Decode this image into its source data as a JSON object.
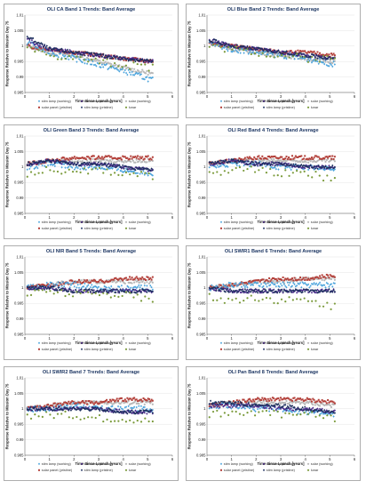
{
  "figure": {
    "x_axis_label": "Time Since Launch [years]",
    "y_axis_label": "Response Relative to Mission Day 75",
    "x_ticks": [
      "0",
      "1",
      "2",
      "3",
      "4",
      "5",
      "6"
    ],
    "y_ticks": [
      "0.985",
      "0.99",
      "0.995",
      "1",
      "1.005",
      "1.01"
    ],
    "legend": [
      {
        "name": "stim lamp (working)",
        "color": "#4aa3dc",
        "marker": "diamond"
      },
      {
        "name": "stim lamp (backup)",
        "color": "#4b2a8c",
        "marker": "diamond"
      },
      {
        "name": "solar (working)",
        "color": "#b8b8b8",
        "marker": "circle"
      },
      {
        "name": "solar panel (pristine)",
        "color": "#b3403a",
        "marker": "square"
      },
      {
        "name": "stim lamp (pristine)",
        "color": "#1d2f5e",
        "marker": "diamond"
      },
      {
        "name": "lunar",
        "color": "#7a9a3a",
        "marker": "circle"
      }
    ]
  },
  "chart_data": [
    {
      "type": "scatter",
      "title": "OLI CA Band 1 Trends: Band Average",
      "xlabel": "Time Since Launch [years]",
      "ylabel": "Response Relative to Mission Day 75",
      "xlim": [
        0,
        6
      ],
      "ylim": [
        0.985,
        1.01
      ],
      "series": [
        {
          "name": "stim lamp (working)",
          "x": [
            0.1,
            1,
            2,
            3,
            4,
            5.2
          ],
          "y": [
            1.001,
            0.998,
            0.996,
            0.994,
            0.992,
            0.989
          ]
        },
        {
          "name": "stim lamp (backup)",
          "x": [
            0.1,
            1,
            2,
            3,
            4,
            5.2
          ],
          "y": [
            1.002,
            0.999,
            0.998,
            0.997,
            0.996,
            0.995
          ]
        },
        {
          "name": "solar (working)",
          "x": [
            0.1,
            1,
            2,
            3,
            4,
            5.2
          ],
          "y": [
            1.0,
            0.998,
            0.997,
            0.995,
            0.993,
            0.991
          ]
        },
        {
          "name": "solar panel (pristine)",
          "x": [
            0.1,
            1,
            2,
            3,
            4,
            5.2
          ],
          "y": [
            1.0,
            0.999,
            0.998,
            0.997,
            0.996,
            0.995
          ]
        },
        {
          "name": "stim lamp (pristine)",
          "x": [
            0.1,
            1,
            2,
            3,
            4,
            5.2
          ],
          "y": [
            1.003,
            0.999,
            0.998,
            0.997,
            0.996,
            0.995
          ]
        },
        {
          "name": "lunar",
          "x": [
            0.1,
            1,
            2,
            3,
            4,
            5.2
          ],
          "y": [
            0.999,
            0.997,
            0.996,
            0.995,
            0.994,
            0.993
          ]
        }
      ]
    },
    {
      "type": "scatter",
      "title": "OLI Blue Band 2 Trends: Band Average",
      "xlabel": "Time Since Launch [years]",
      "ylabel": "Response Relative to Mission Day 75",
      "xlim": [
        0,
        6
      ],
      "ylim": [
        0.985,
        1.01
      ],
      "series": [
        {
          "name": "stim lamp (working)",
          "x": [
            0.1,
            1,
            2,
            3,
            4,
            5.2
          ],
          "y": [
            1.001,
            0.999,
            0.998,
            0.997,
            0.996,
            0.994
          ]
        },
        {
          "name": "stim lamp (backup)",
          "x": [
            0.1,
            1,
            2,
            3,
            4,
            5.2
          ],
          "y": [
            1.002,
            1.0,
            0.999,
            0.998,
            0.997,
            0.996
          ]
        },
        {
          "name": "solar (working)",
          "x": [
            0.1,
            1,
            2,
            3,
            4,
            5.2
          ],
          "y": [
            1.001,
            0.999,
            0.998,
            0.997,
            0.996,
            0.995
          ]
        },
        {
          "name": "solar panel (pristine)",
          "x": [
            0.1,
            1,
            2,
            3,
            4,
            5.2
          ],
          "y": [
            1.001,
            1.0,
            0.999,
            0.998,
            0.998,
            0.997
          ]
        },
        {
          "name": "stim lamp (pristine)",
          "x": [
            0.1,
            1,
            2,
            3,
            4,
            5.2
          ],
          "y": [
            1.002,
            1.0,
            0.999,
            0.998,
            0.997,
            0.996
          ]
        },
        {
          "name": "lunar",
          "x": [
            0.1,
            1,
            2,
            3,
            4,
            5.2
          ],
          "y": [
            1.0,
            0.999,
            0.998,
            0.997,
            0.996,
            0.996
          ]
        }
      ]
    },
    {
      "type": "scatter",
      "title": "OLI Green Band 3 Trends: Band Average",
      "xlabel": "Time Since Launch [years]",
      "ylabel": "Response Relative to Mission Day 75",
      "xlim": [
        0,
        6
      ],
      "ylim": [
        0.985,
        1.01
      ],
      "series": [
        {
          "name": "stim lamp (working)",
          "x": [
            0.1,
            1,
            2,
            3,
            4,
            5.2
          ],
          "y": [
            1.0,
            1.001,
            1.0,
            1.0,
            0.999,
            0.998
          ]
        },
        {
          "name": "stim lamp (backup)",
          "x": [
            0.1,
            1,
            2,
            3,
            4,
            5.2
          ],
          "y": [
            1.001,
            1.002,
            1.001,
            1.001,
            1.0,
            0.999
          ]
        },
        {
          "name": "solar (working)",
          "x": [
            0.1,
            1,
            2,
            3,
            4,
            5.2
          ],
          "y": [
            1.001,
            1.002,
            1.002,
            1.002,
            1.002,
            1.002
          ]
        },
        {
          "name": "solar panel (pristine)",
          "x": [
            0.1,
            1,
            2,
            3,
            4,
            5.2
          ],
          "y": [
            1.001,
            1.002,
            1.003,
            1.003,
            1.003,
            1.003
          ]
        },
        {
          "name": "stim lamp (pristine)",
          "x": [
            0.1,
            1,
            2,
            3,
            4,
            5.2
          ],
          "y": [
            1.001,
            1.002,
            1.001,
            1.001,
            1.0,
            0.999
          ]
        },
        {
          "name": "lunar",
          "x": [
            0.1,
            1,
            2,
            3,
            4,
            5.2
          ],
          "y": [
            0.998,
            0.999,
            0.999,
            0.999,
            0.998,
            0.997
          ]
        }
      ]
    },
    {
      "type": "scatter",
      "title": "OLI Red Band 4 Trends: Band Average",
      "xlabel": "Time Since Launch [years]",
      "ylabel": "Response Relative to Mission Day 75",
      "xlim": [
        0,
        6
      ],
      "ylim": [
        0.985,
        1.01
      ],
      "series": [
        {
          "name": "stim lamp (working)",
          "x": [
            0.1,
            1,
            2,
            3,
            4,
            5.2
          ],
          "y": [
            1.0,
            1.001,
            1.001,
            1.0,
            1.0,
            0.999
          ]
        },
        {
          "name": "stim lamp (backup)",
          "x": [
            0.1,
            1,
            2,
            3,
            4,
            5.2
          ],
          "y": [
            1.001,
            1.002,
            1.001,
            1.001,
            1.0,
            1.0
          ]
        },
        {
          "name": "solar (working)",
          "x": [
            0.1,
            1,
            2,
            3,
            4,
            5.2
          ],
          "y": [
            1.001,
            1.002,
            1.002,
            1.002,
            1.002,
            1.002
          ]
        },
        {
          "name": "solar panel (pristine)",
          "x": [
            0.1,
            1,
            2,
            3,
            4,
            5.2
          ],
          "y": [
            1.001,
            1.002,
            1.003,
            1.003,
            1.003,
            1.003
          ]
        },
        {
          "name": "stim lamp (pristine)",
          "x": [
            0.1,
            1,
            2,
            3,
            4,
            5.2
          ],
          "y": [
            1.001,
            1.002,
            1.001,
            1.001,
            1.0,
            1.0
          ]
        },
        {
          "name": "lunar",
          "x": [
            0.1,
            1,
            2,
            3,
            4,
            5.2
          ],
          "y": [
            0.998,
            0.999,
            0.999,
            0.998,
            0.998,
            0.996
          ]
        }
      ]
    },
    {
      "type": "scatter",
      "title": "OLI NIR Band 5 Trends: Band Average",
      "xlabel": "Time Since Launch [years]",
      "ylabel": "Response Relative to Mission Day 75",
      "xlim": [
        0,
        6
      ],
      "ylim": [
        0.985,
        1.01
      ],
      "series": [
        {
          "name": "stim lamp (working)",
          "x": [
            0.1,
            1,
            2,
            3,
            4,
            5.2
          ],
          "y": [
            1.0,
            1.001,
            1.001,
            1.0,
            1.0,
            1.0
          ]
        },
        {
          "name": "stim lamp (backup)",
          "x": [
            0.1,
            1,
            2,
            3,
            4,
            5.2
          ],
          "y": [
            1.0,
            1.0,
            0.999,
            0.999,
            0.999,
            0.999
          ]
        },
        {
          "name": "solar (working)",
          "x": [
            0.1,
            1,
            2,
            3,
            4,
            5.2
          ],
          "y": [
            1.0,
            1.001,
            1.002,
            1.002,
            1.002,
            1.002
          ]
        },
        {
          "name": "solar panel (pristine)",
          "x": [
            0.1,
            1,
            2,
            3,
            4,
            5.2
          ],
          "y": [
            1.0,
            1.001,
            1.002,
            1.002,
            1.003,
            1.003
          ]
        },
        {
          "name": "stim lamp (pristine)",
          "x": [
            0.1,
            1,
            2,
            3,
            4,
            5.2
          ],
          "y": [
            1.0,
            1.0,
            0.999,
            0.999,
            0.999,
            0.999
          ]
        },
        {
          "name": "lunar",
          "x": [
            0.1,
            1,
            2,
            3,
            4,
            5.2
          ],
          "y": [
            0.998,
            0.999,
            0.998,
            0.998,
            0.998,
            0.996
          ]
        }
      ]
    },
    {
      "type": "scatter",
      "title": "OLI SWIR1 Band 6 Trends: Band Average",
      "xlabel": "Time Since Launch [years]",
      "ylabel": "Response Relative to Mission Day 75",
      "xlim": [
        0,
        6
      ],
      "ylim": [
        0.985,
        1.01
      ],
      "series": [
        {
          "name": "stim lamp (working)",
          "x": [
            0.1,
            1,
            2,
            3,
            4,
            5.2
          ],
          "y": [
            1.0,
            1.001,
            1.001,
            1.001,
            1.001,
            1.001
          ]
        },
        {
          "name": "stim lamp (backup)",
          "x": [
            0.1,
            1,
            2,
            3,
            4,
            5.2
          ],
          "y": [
            1.0,
            0.999,
            0.999,
            0.999,
            0.999,
            0.999
          ]
        },
        {
          "name": "solar (working)",
          "x": [
            0.1,
            1,
            2,
            3,
            4,
            5.2
          ],
          "y": [
            1.0,
            1.001,
            1.002,
            1.002,
            1.003,
            1.003
          ]
        },
        {
          "name": "solar panel (pristine)",
          "x": [
            0.1,
            1,
            2,
            3,
            4,
            5.2
          ],
          "y": [
            1.0,
            1.001,
            1.002,
            1.003,
            1.003,
            1.004
          ]
        },
        {
          "name": "stim lamp (pristine)",
          "x": [
            0.1,
            1,
            2,
            3,
            4,
            5.2
          ],
          "y": [
            1.0,
            0.999,
            0.999,
            0.999,
            0.999,
            0.999
          ]
        },
        {
          "name": "lunar",
          "x": [
            0.1,
            1,
            2,
            3,
            4,
            5.2
          ],
          "y": [
            0.997,
            0.996,
            0.997,
            0.996,
            0.996,
            0.994
          ]
        }
      ]
    },
    {
      "type": "scatter",
      "title": "OLI SWIR2 Band 7 Trends: Band Average",
      "xlabel": "Time Since Launch [years]",
      "ylabel": "Response Relative to Mission Day 75",
      "xlim": [
        0,
        6
      ],
      "ylim": [
        0.985,
        1.01
      ],
      "series": [
        {
          "name": "stim lamp (working)",
          "x": [
            0.1,
            1,
            2,
            3,
            4,
            5.2
          ],
          "y": [
            1.0,
            1.0,
            1.001,
            1.0,
            1.0,
            1.0
          ]
        },
        {
          "name": "stim lamp (backup)",
          "x": [
            0.1,
            1,
            2,
            3,
            4,
            5.2
          ],
          "y": [
            1.0,
            1.0,
            1.0,
            1.0,
            0.999,
            0.999
          ]
        },
        {
          "name": "solar (working)",
          "x": [
            0.1,
            1,
            2,
            3,
            4,
            5.2
          ],
          "y": [
            1.0,
            1.001,
            1.002,
            1.002,
            1.002,
            1.002
          ]
        },
        {
          "name": "solar panel (pristine)",
          "x": [
            0.1,
            1,
            2,
            3,
            4,
            5.2
          ],
          "y": [
            1.0,
            1.001,
            1.002,
            1.002,
            1.003,
            1.003
          ]
        },
        {
          "name": "stim lamp (pristine)",
          "x": [
            0.1,
            1,
            2,
            3,
            4,
            5.2
          ],
          "y": [
            1.0,
            1.0,
            1.0,
            1.0,
            0.999,
            0.999
          ]
        },
        {
          "name": "lunar",
          "x": [
            0.1,
            1,
            2,
            3,
            4,
            5.2
          ],
          "y": [
            0.998,
            0.998,
            0.998,
            0.997,
            0.997,
            0.996
          ]
        }
      ]
    },
    {
      "type": "scatter",
      "title": "OLI Pan Band 8 Trends: Band Average",
      "xlabel": "Time Since Launch [years]",
      "ylabel": "Response Relative to Mission Day 75",
      "xlim": [
        0,
        6
      ],
      "ylim": [
        0.985,
        1.01
      ],
      "series": [
        {
          "name": "stim lamp (working)",
          "x": [
            0.1,
            1,
            2,
            3,
            4,
            5.2
          ],
          "y": [
            1.001,
            1.001,
            1.0,
            1.0,
            0.999,
            0.998
          ]
        },
        {
          "name": "stim lamp (backup)",
          "x": [
            0.1,
            1,
            2,
            3,
            4,
            5.2
          ],
          "y": [
            1.001,
            1.001,
            1.001,
            1.0,
            1.0,
            0.999
          ]
        },
        {
          "name": "solar (working)",
          "x": [
            0.1,
            1,
            2,
            3,
            4,
            5.2
          ],
          "y": [
            1.001,
            1.002,
            1.002,
            1.002,
            1.002,
            1.001
          ]
        },
        {
          "name": "solar panel (pristine)",
          "x": [
            0.1,
            1,
            2,
            3,
            4,
            5.2
          ],
          "y": [
            1.001,
            1.002,
            1.003,
            1.003,
            1.003,
            1.002
          ]
        },
        {
          "name": "stim lamp (pristine)",
          "x": [
            0.1,
            1,
            2,
            3,
            4,
            5.2
          ],
          "y": [
            1.002,
            1.002,
            1.001,
            1.001,
            1.0,
            0.999
          ]
        },
        {
          "name": "lunar",
          "x": [
            0.1,
            1,
            2,
            3,
            4,
            5.2
          ],
          "y": [
            0.998,
            0.999,
            0.999,
            0.998,
            0.998,
            0.997
          ]
        }
      ]
    }
  ]
}
